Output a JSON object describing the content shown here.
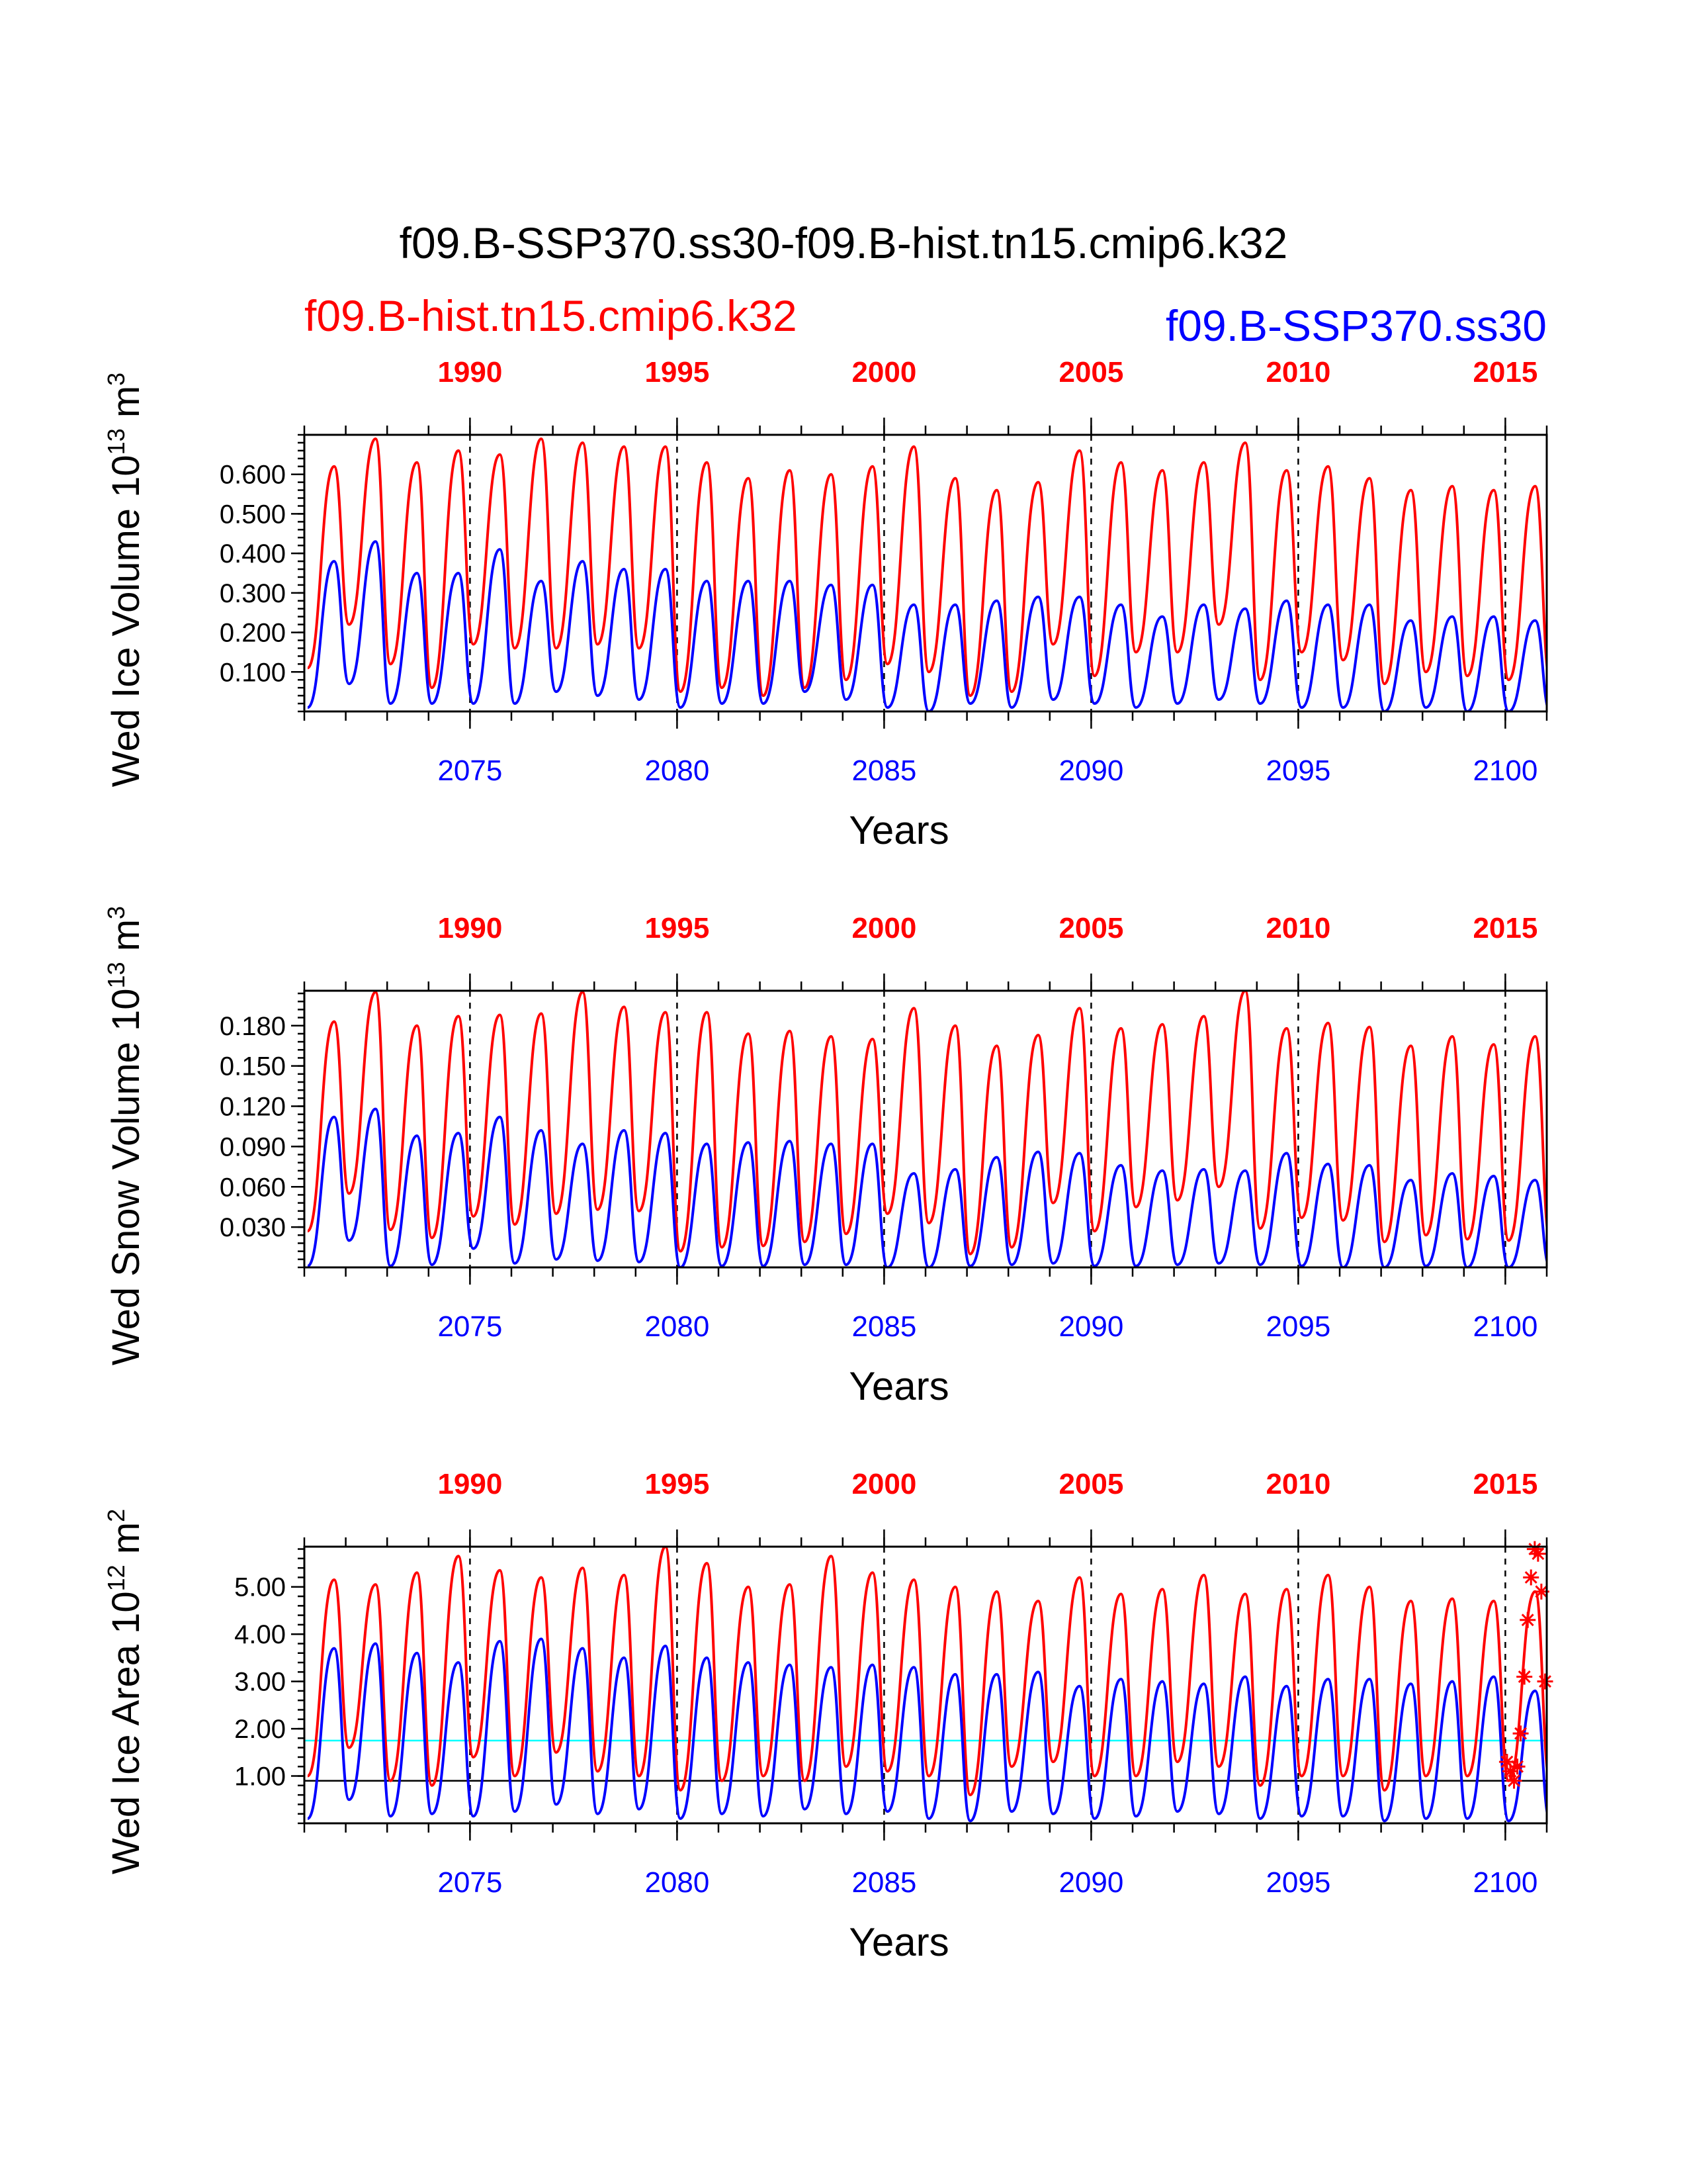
{
  "title": "f09.B-SSP370.ss30-f09.B-hist.tn15.cmip6.k32",
  "legend": {
    "left": {
      "text": "f09.B-hist.tn15.cmip6.k32",
      "color": "#ff0000"
    },
    "right": {
      "text": "f09.B-SSP370.ss30",
      "color": "#0000ff"
    }
  },
  "colors": {
    "hist": "#ff0000",
    "ssp": "#0000ff",
    "ref": "#00ffff",
    "zero": "#000000"
  },
  "chart_data": [
    {
      "type": "line",
      "ylabel": "Wed Ice Volume 10",
      "ylabel_exp": "13",
      "ylabel_unit": " m",
      "ylabel_unit_exp": "3",
      "xlabel": "Years",
      "ylim": [
        0.0,
        0.7
      ],
      "yticks": [
        "0.100",
        "0.200",
        "0.300",
        "0.400",
        "0.500",
        "0.600"
      ],
      "bottom_axis": {
        "range": [
          2071,
          2101
        ],
        "ticks": [
          "2075",
          "2080",
          "2085",
          "2090",
          "2095",
          "2100"
        ]
      },
      "top_axis": {
        "range": [
          1986,
          2016
        ],
        "ticks": [
          "1990",
          "1995",
          "2000",
          "2005",
          "2010",
          "2015"
        ]
      },
      "series": [
        {
          "name": "f09.B-hist.tn15.cmip6.k32",
          "color": "#ff0000",
          "annual_max": [
            0.62,
            0.69,
            0.63,
            0.66,
            0.65,
            0.69,
            0.68,
            0.67,
            0.67,
            0.63,
            0.59,
            0.61,
            0.6,
            0.62,
            0.67,
            0.59,
            0.56,
            0.58,
            0.66,
            0.63,
            0.61,
            0.63,
            0.68,
            0.61,
            0.62,
            0.59,
            0.56,
            0.57,
            0.56,
            0.57
          ],
          "annual_min": [
            0.11,
            0.22,
            0.12,
            0.06,
            0.17,
            0.16,
            0.16,
            0.17,
            0.16,
            0.05,
            0.06,
            0.04,
            0.06,
            0.08,
            0.12,
            0.1,
            0.04,
            0.05,
            0.17,
            0.09,
            0.15,
            0.15,
            0.22,
            0.08,
            0.15,
            0.13,
            0.07,
            0.1,
            0.09,
            0.08
          ]
        },
        {
          "name": "f09.B-SSP370.ss30",
          "color": "#0000ff",
          "annual_max": [
            0.38,
            0.43,
            0.35,
            0.35,
            0.41,
            0.33,
            0.38,
            0.36,
            0.36,
            0.33,
            0.33,
            0.33,
            0.32,
            0.32,
            0.27,
            0.27,
            0.28,
            0.29,
            0.29,
            0.27,
            0.24,
            0.27,
            0.26,
            0.28,
            0.27,
            0.27,
            0.23,
            0.24,
            0.24,
            0.23
          ],
          "annual_min": [
            0.01,
            0.07,
            0.02,
            0.02,
            0.02,
            0.02,
            0.05,
            0.04,
            0.03,
            0.01,
            0.02,
            0.02,
            0.05,
            0.03,
            0.01,
            0.0,
            0.02,
            0.01,
            0.03,
            0.02,
            0.01,
            0.02,
            0.03,
            0.02,
            0.01,
            0.01,
            0.0,
            0.01,
            0.0,
            0.0
          ]
        }
      ]
    },
    {
      "type": "line",
      "ylabel": "Wed Snow Volume 10",
      "ylabel_exp": "13",
      "ylabel_unit": " m",
      "ylabel_unit_exp": "3",
      "xlabel": "Years",
      "ylim": [
        0.0,
        0.206
      ],
      "yticks": [
        "0.030",
        "0.060",
        "0.090",
        "0.120",
        "0.150",
        "0.180"
      ],
      "bottom_axis": {
        "range": [
          2071,
          2101
        ],
        "ticks": [
          "2075",
          "2080",
          "2085",
          "2090",
          "2095",
          "2100"
        ]
      },
      "top_axis": {
        "range": [
          1986,
          2016
        ],
        "ticks": [
          "1990",
          "1995",
          "2000",
          "2005",
          "2010",
          "2015"
        ]
      },
      "series": [
        {
          "name": "f09.B-hist.tn15.cmip6.k32",
          "color": "#ff0000",
          "annual_max": [
            0.183,
            0.205,
            0.18,
            0.187,
            0.188,
            0.189,
            0.205,
            0.194,
            0.19,
            0.19,
            0.174,
            0.176,
            0.172,
            0.17,
            0.193,
            0.18,
            0.165,
            0.173,
            0.193,
            0.178,
            0.181,
            0.187,
            0.206,
            0.178,
            0.182,
            0.179,
            0.165,
            0.172,
            0.166,
            0.172
          ],
          "annual_min": [
            0.027,
            0.055,
            0.028,
            0.022,
            0.038,
            0.032,
            0.04,
            0.043,
            0.042,
            0.012,
            0.015,
            0.016,
            0.019,
            0.025,
            0.04,
            0.033,
            0.01,
            0.015,
            0.048,
            0.027,
            0.045,
            0.05,
            0.06,
            0.029,
            0.037,
            0.035,
            0.019,
            0.024,
            0.021,
            0.02
          ]
        },
        {
          "name": "f09.B-SSP370.ss30",
          "color": "#0000ff",
          "annual_max": [
            0.112,
            0.118,
            0.098,
            0.1,
            0.112,
            0.102,
            0.092,
            0.102,
            0.1,
            0.092,
            0.093,
            0.094,
            0.092,
            0.092,
            0.07,
            0.073,
            0.082,
            0.086,
            0.085,
            0.076,
            0.072,
            0.073,
            0.072,
            0.085,
            0.077,
            0.076,
            0.065,
            0.07,
            0.068,
            0.065
          ],
          "annual_min": [
            0.001,
            0.02,
            0.001,
            0.002,
            0.014,
            0.003,
            0.006,
            0.005,
            0.004,
            0.0,
            0.001,
            0.001,
            0.002,
            0.002,
            0.0,
            0.0,
            0.001,
            0.002,
            0.003,
            0.001,
            0.001,
            0.002,
            0.003,
            0.002,
            0.001,
            0.0,
            0.0,
            0.001,
            0.0,
            0.0
          ]
        }
      ]
    },
    {
      "type": "line",
      "ylabel": "Wed Ice Area 10",
      "ylabel_exp": "12",
      "ylabel_unit": " m",
      "ylabel_unit_exp": "2",
      "xlabel": "Years",
      "ylim": [
        0.0,
        5.85
      ],
      "yticks": [
        "1.00",
        "2.00",
        "3.00",
        "4.00",
        "5.00"
      ],
      "bottom_axis": {
        "range": [
          2071,
          2101
        ],
        "ticks": [
          "2075",
          "2080",
          "2085",
          "2090",
          "2095",
          "2100"
        ]
      },
      "top_axis": {
        "range": [
          1986,
          2016
        ],
        "ticks": [
          "1990",
          "1995",
          "2000",
          "2005",
          "2010",
          "2015"
        ]
      },
      "reference_lines": [
        {
          "y": 1.75,
          "color": "#00ffff"
        },
        {
          "y": 0.9,
          "color": "#000000"
        }
      ],
      "series": [
        {
          "name": "f09.B-hist.tn15.cmip6.k32",
          "color": "#ff0000",
          "annual_max": [
            5.15,
            5.05,
            5.3,
            5.65,
            5.35,
            5.2,
            5.4,
            5.25,
            5.85,
            5.5,
            5.0,
            5.05,
            5.65,
            5.3,
            5.15,
            5.0,
            4.9,
            4.7,
            5.2,
            4.85,
            4.95,
            5.25,
            4.85,
            4.95,
            5.25,
            5.0,
            4.7,
            4.75,
            4.7,
            4.9
          ],
          "annual_min": [
            1.0,
            1.6,
            0.9,
            0.8,
            1.4,
            1.0,
            1.5,
            1.1,
            1.0,
            0.7,
            0.9,
            1.0,
            0.9,
            1.2,
            1.1,
            1.0,
            0.6,
            1.2,
            1.3,
            1.0,
            1.0,
            1.3,
            1.2,
            0.8,
            1.0,
            1.0,
            0.7,
            1.0,
            1.0,
            0.9
          ]
        },
        {
          "name": "f09.B-SSP370.ss30",
          "color": "#0000ff",
          "annual_max": [
            3.7,
            3.8,
            3.6,
            3.4,
            3.85,
            3.9,
            3.7,
            3.5,
            3.75,
            3.5,
            3.4,
            3.35,
            3.3,
            3.35,
            3.3,
            3.15,
            3.15,
            3.2,
            2.9,
            3.05,
            3.0,
            2.95,
            3.1,
            2.9,
            3.05,
            3.05,
            2.95,
            3.0,
            3.1,
            2.8
          ],
          "annual_min": [
            0.1,
            0.5,
            0.15,
            0.2,
            0.15,
            0.25,
            0.4,
            0.2,
            0.3,
            0.1,
            0.2,
            0.15,
            0.3,
            0.2,
            0.25,
            0.1,
            0.05,
            0.25,
            0.2,
            0.1,
            0.15,
            0.25,
            0.2,
            0.1,
            0.15,
            0.15,
            0.05,
            0.1,
            0.1,
            0.05
          ]
        },
        {
          "name": "",
          "type": "scatter",
          "marker": "asterisk",
          "color": "#ff0000",
          "x": [
            2100.04,
            2100.12,
            2100.21,
            2100.29,
            2100.37,
            2100.46,
            2100.54,
            2100.62,
            2100.71,
            2100.79,
            2100.87,
            2100.96
          ],
          "y": [
            1.3,
            1.1,
            0.9,
            1.2,
            1.9,
            3.1,
            4.3,
            5.2,
            5.8,
            5.7,
            4.9,
            3.0
          ]
        }
      ]
    }
  ]
}
